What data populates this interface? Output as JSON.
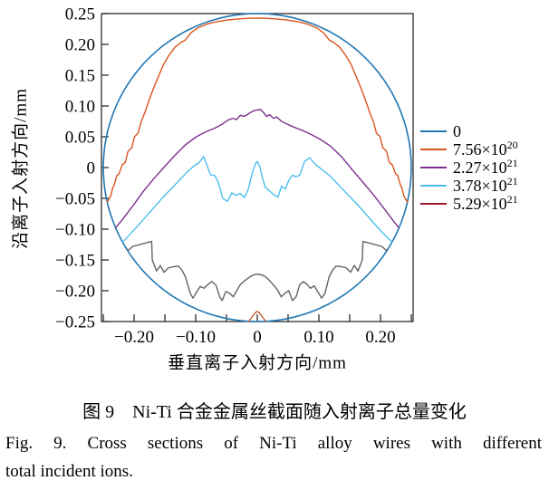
{
  "figure": {
    "caption_zh": "图 9　Ni-Ti 合金金属丝截面随入射离子总量变化",
    "caption_en_line1": "Fig. 9. Cross sections of Ni-Ti alloy wires with different",
    "caption_en_line2": "total incident ions."
  },
  "legend": {
    "items": [
      {
        "base": "0",
        "exp": "",
        "color": "#1f77b4"
      },
      {
        "base": "7.56×10",
        "exp": "20",
        "color": "#d9531e"
      },
      {
        "base": "2.27×10",
        "exp": "21",
        "color": "#7e2f8e"
      },
      {
        "base": "3.78×10",
        "exp": "21",
        "color": "#4dbeee"
      },
      {
        "base": "5.29×10",
        "exp": "21",
        "color": "#a2142f"
      }
    ]
  },
  "chart_data": {
    "type": "line",
    "title": "",
    "xlabel": "垂直离子入射方向/mm",
    "ylabel": "沿离子入射方向/mm",
    "xlim": [
      -0.253,
      0.253
    ],
    "ylim": [
      -0.25,
      0.25
    ],
    "grid": false,
    "legend_position": "right-outside",
    "x_ticks": [
      {
        "v": -0.25,
        "label": ""
      },
      {
        "v": -0.2,
        "label": "−0.20"
      },
      {
        "v": -0.15,
        "label": ""
      },
      {
        "v": -0.1,
        "label": "−0.10"
      },
      {
        "v": -0.05,
        "label": ""
      },
      {
        "v": 0,
        "label": "0"
      },
      {
        "v": 0.05,
        "label": ""
      },
      {
        "v": 0.1,
        "label": "0.10"
      },
      {
        "v": 0.15,
        "label": ""
      },
      {
        "v": 0.2,
        "label": "0.20"
      },
      {
        "v": 0.25,
        "label": ""
      }
    ],
    "y_ticks": [
      {
        "v": 0.25,
        "label": "0.25"
      },
      {
        "v": 0.2,
        "label": "0.20"
      },
      {
        "v": 0.15,
        "label": "0.15"
      },
      {
        "v": 0.1,
        "label": "0.10"
      },
      {
        "v": 0.05,
        "label": "0.05"
      },
      {
        "v": 0,
        "label": "0"
      },
      {
        "v": -0.05,
        "label": "−0.05"
      },
      {
        "v": -0.1,
        "label": "−0.10"
      },
      {
        "v": -0.15,
        "label": "−0.15"
      },
      {
        "v": -0.2,
        "label": "−0.20"
      },
      {
        "v": -0.25,
        "label": "−0.25"
      }
    ],
    "series": [
      {
        "name": "0",
        "color": "#1f77b4",
        "width": 1.6,
        "shape": "circle",
        "cx": 0,
        "cy": 0,
        "r": 0.25
      },
      {
        "name": "7.56×10^20",
        "color": "#d9531e",
        "width": 1.4,
        "points": [
          [
            -0.2437,
            -0.056
          ],
          [
            -0.238,
            -0.046
          ],
          [
            -0.2345,
            -0.032
          ],
          [
            -0.2325,
            -0.029
          ],
          [
            -0.228,
            -0.013
          ],
          [
            -0.2245,
            -0.01
          ],
          [
            -0.2195,
            0.004
          ],
          [
            -0.214,
            0.009
          ],
          [
            -0.21,
            0.026
          ],
          [
            -0.2035,
            0.033
          ],
          [
            -0.1995,
            0.05
          ],
          [
            -0.1935,
            0.056
          ],
          [
            -0.189,
            0.073
          ],
          [
            -0.182,
            0.091
          ],
          [
            -0.1755,
            0.11
          ],
          [
            -0.168,
            0.13
          ],
          [
            -0.16,
            0.149
          ],
          [
            -0.1515,
            0.169
          ],
          [
            -0.143,
            0.183
          ],
          [
            -0.134,
            0.195
          ],
          [
            -0.1245,
            0.203
          ],
          [
            -0.117,
            0.207
          ],
          [
            -0.1075,
            0.219
          ],
          [
            -0.096,
            0.227
          ],
          [
            -0.0815,
            0.233
          ],
          [
            -0.065,
            0.237
          ],
          [
            -0.048,
            0.2395
          ],
          [
            -0.029,
            0.2415
          ],
          [
            -0.0115,
            0.2425
          ],
          [
            0,
            0.2428
          ],
          [
            0.0115,
            0.2425
          ],
          [
            0.029,
            0.2415
          ],
          [
            0.048,
            0.2395
          ],
          [
            0.065,
            0.237
          ],
          [
            0.0815,
            0.233
          ],
          [
            0.096,
            0.227
          ],
          [
            0.1075,
            0.219
          ],
          [
            0.117,
            0.207
          ],
          [
            0.1245,
            0.203
          ],
          [
            0.134,
            0.195
          ],
          [
            0.143,
            0.183
          ],
          [
            0.1515,
            0.169
          ],
          [
            0.16,
            0.149
          ],
          [
            0.168,
            0.13
          ],
          [
            0.1755,
            0.11
          ],
          [
            0.182,
            0.091
          ],
          [
            0.189,
            0.073
          ],
          [
            0.1935,
            0.056
          ],
          [
            0.1995,
            0.05
          ],
          [
            0.2035,
            0.033
          ],
          [
            0.21,
            0.026
          ],
          [
            0.214,
            0.009
          ],
          [
            0.2195,
            0.004
          ],
          [
            0.2245,
            -0.01
          ],
          [
            0.228,
            -0.013
          ],
          [
            0.2325,
            -0.029
          ],
          [
            0.2345,
            -0.032
          ],
          [
            0.238,
            -0.046
          ],
          [
            0.2437,
            -0.056
          ]
        ]
      },
      {
        "name": "2.27×10^21",
        "color": "#7e2f8e",
        "width": 1.4,
        "points": [
          [
            -0.23,
            -0.098
          ],
          [
            -0.2195,
            -0.085
          ],
          [
            -0.2025,
            -0.063
          ],
          [
            -0.186,
            -0.04
          ],
          [
            -0.168,
            -0.018
          ],
          [
            -0.15,
            0.002
          ],
          [
            -0.1335,
            0.02
          ],
          [
            -0.1165,
            0.037
          ],
          [
            -0.099,
            0.05
          ],
          [
            -0.084,
            0.058
          ],
          [
            -0.069,
            0.064
          ],
          [
            -0.0575,
            0.07
          ],
          [
            -0.0475,
            0.077
          ],
          [
            -0.0395,
            0.08
          ],
          [
            -0.0335,
            0.078
          ],
          [
            -0.0275,
            0.085
          ],
          [
            -0.0215,
            0.083
          ],
          [
            -0.016,
            0.086
          ],
          [
            -0.01,
            0.09
          ],
          [
            -0.005,
            0.0925
          ],
          [
            0.0,
            0.0935
          ],
          [
            0.005,
            0.0945
          ],
          [
            0.01,
            0.0895
          ],
          [
            0.015,
            0.083
          ],
          [
            0.02,
            0.086
          ],
          [
            0.026,
            0.08
          ],
          [
            0.0315,
            0.082
          ],
          [
            0.0395,
            0.075
          ],
          [
            0.0495,
            0.07
          ],
          [
            0.061,
            0.065
          ],
          [
            0.074,
            0.06
          ],
          [
            0.089,
            0.053
          ],
          [
            0.1035,
            0.045
          ],
          [
            0.1185,
            0.035
          ],
          [
            0.1365,
            0.018
          ],
          [
            0.153,
            -0.002
          ],
          [
            0.17,
            -0.022
          ],
          [
            0.1875,
            -0.043
          ],
          [
            0.2055,
            -0.066
          ],
          [
            0.222,
            -0.088
          ],
          [
            0.23,
            -0.098
          ]
        ]
      },
      {
        "name": "3.78×10^21",
        "color": "#4dbeee",
        "width": 1.4,
        "points": [
          [
            -0.2188,
            -0.121
          ],
          [
            -0.2025,
            -0.104
          ],
          [
            -0.1855,
            -0.085
          ],
          [
            -0.168,
            -0.065
          ],
          [
            -0.15,
            -0.045
          ],
          [
            -0.1335,
            -0.028
          ],
          [
            -0.1165,
            -0.01
          ],
          [
            -0.1035,
            0.002
          ],
          [
            -0.0945,
            0.008
          ],
          [
            -0.087,
            0.018
          ],
          [
            -0.081,
            0.002
          ],
          [
            -0.076,
            -0.012
          ],
          [
            -0.069,
            -0.013
          ],
          [
            -0.063,
            -0.025
          ],
          [
            -0.056,
            -0.05
          ],
          [
            -0.0485,
            -0.055
          ],
          [
            -0.0415,
            -0.041
          ],
          [
            -0.0345,
            -0.045
          ],
          [
            -0.0275,
            -0.042
          ],
          [
            -0.021,
            -0.049
          ],
          [
            -0.0145,
            -0.035
          ],
          [
            -0.008,
            -0.008
          ],
          [
            -0.003,
            0.006
          ],
          [
            0.0,
            0.01
          ],
          [
            0.004,
            0.002
          ],
          [
            0.008,
            -0.015
          ],
          [
            0.013,
            -0.032
          ],
          [
            0.02,
            -0.038
          ],
          [
            0.0265,
            -0.044
          ],
          [
            0.0335,
            -0.048
          ],
          [
            0.0395,
            -0.03
          ],
          [
            0.0455,
            -0.035
          ],
          [
            0.0515,
            -0.02
          ],
          [
            0.0575,
            -0.012
          ],
          [
            0.063,
            -0.015
          ],
          [
            0.069,
            -0.012
          ],
          [
            0.077,
            0.01
          ],
          [
            0.085,
            0.016
          ],
          [
            0.0935,
            0.006
          ],
          [
            0.1035,
            -0.002
          ],
          [
            0.1165,
            -0.012
          ],
          [
            0.1335,
            -0.03
          ],
          [
            0.15,
            -0.047
          ],
          [
            0.168,
            -0.066
          ],
          [
            0.1855,
            -0.086
          ],
          [
            0.2025,
            -0.105
          ],
          [
            0.2188,
            -0.121
          ]
        ]
      },
      {
        "name": "unlabeled (gray)",
        "color": "#636363",
        "width": 1.4,
        "points": [
          [
            -0.2104,
            -0.135
          ],
          [
            -0.202,
            -0.128
          ],
          [
            -0.187,
            -0.124
          ],
          [
            -0.1715,
            -0.12
          ],
          [
            -0.1705,
            -0.15
          ],
          [
            -0.1635,
            -0.168
          ],
          [
            -0.1575,
            -0.159
          ],
          [
            -0.1515,
            -0.17
          ],
          [
            -0.1445,
            -0.163
          ],
          [
            -0.136,
            -0.161
          ],
          [
            -0.128,
            -0.16
          ],
          [
            -0.122,
            -0.167
          ],
          [
            -0.1165,
            -0.178
          ],
          [
            -0.1085,
            -0.205
          ],
          [
            -0.1045,
            -0.212
          ],
          [
            -0.0985,
            -0.202
          ],
          [
            -0.0925,
            -0.193
          ],
          [
            -0.0865,
            -0.196
          ],
          [
            -0.0805,
            -0.19
          ],
          [
            -0.074,
            -0.185
          ],
          [
            -0.067,
            -0.191
          ],
          [
            -0.061,
            -0.21
          ],
          [
            -0.057,
            -0.216
          ],
          [
            -0.051,
            -0.201
          ],
          [
            -0.045,
            -0.204
          ],
          [
            -0.039,
            -0.21
          ],
          [
            -0.0335,
            -0.2
          ],
          [
            -0.0275,
            -0.19
          ],
          [
            -0.0195,
            -0.183
          ],
          [
            -0.0115,
            -0.177
          ],
          [
            -0.005,
            -0.174
          ],
          [
            0.0,
            -0.173
          ],
          [
            0.006,
            -0.174
          ],
          [
            0.0115,
            -0.176
          ],
          [
            0.0195,
            -0.183
          ],
          [
            0.0275,
            -0.192
          ],
          [
            0.0335,
            -0.2
          ],
          [
            0.039,
            -0.21
          ],
          [
            0.045,
            -0.204
          ],
          [
            0.051,
            -0.2
          ],
          [
            0.057,
            -0.216
          ],
          [
            0.063,
            -0.21
          ],
          [
            0.069,
            -0.19
          ],
          [
            0.075,
            -0.185
          ],
          [
            0.081,
            -0.19
          ],
          [
            0.0865,
            -0.196
          ],
          [
            0.0925,
            -0.192
          ],
          [
            0.0985,
            -0.202
          ],
          [
            0.1045,
            -0.212
          ],
          [
            0.11,
            -0.204
          ],
          [
            0.1165,
            -0.178
          ],
          [
            0.122,
            -0.167
          ],
          [
            0.128,
            -0.16
          ],
          [
            0.1375,
            -0.161
          ],
          [
            0.1445,
            -0.163
          ],
          [
            0.1515,
            -0.17
          ],
          [
            0.1575,
            -0.159
          ],
          [
            0.1635,
            -0.168
          ],
          [
            0.1705,
            -0.15
          ],
          [
            0.1715,
            -0.12
          ],
          [
            0.187,
            -0.124
          ],
          [
            0.202,
            -0.128
          ],
          [
            0.2104,
            -0.135
          ]
        ]
      },
      {
        "name": "5.29×10^21",
        "color": "#c24d28",
        "width": 1.3,
        "points": [
          [
            -0.014,
            -0.25
          ],
          [
            -0.008,
            -0.242
          ],
          [
            -0.003,
            -0.2355
          ],
          [
            0.0,
            -0.2335
          ],
          [
            0.003,
            -0.2355
          ],
          [
            0.008,
            -0.242
          ],
          [
            0.014,
            -0.25
          ]
        ]
      }
    ]
  }
}
